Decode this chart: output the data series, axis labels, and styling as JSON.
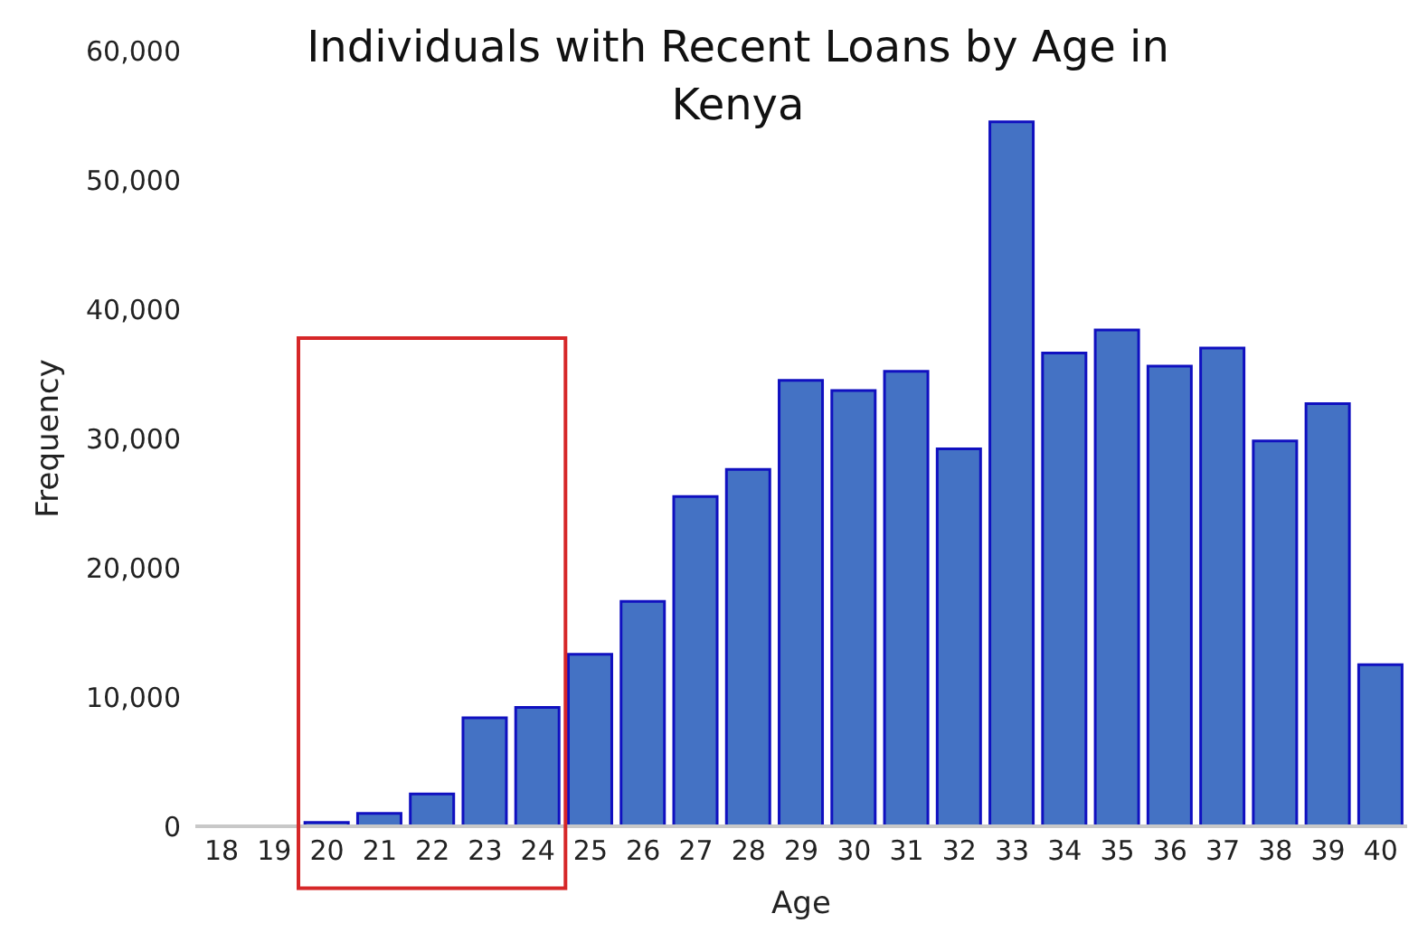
{
  "chart_data": {
    "type": "bar",
    "title": "Individuals with Recent Loans by Age in Kenya",
    "xlabel": "Age",
    "ylabel": "Frequency",
    "categories": [
      "18",
      "19",
      "20",
      "21",
      "22",
      "23",
      "24",
      "25",
      "26",
      "27",
      "28",
      "29",
      "30",
      "31",
      "32",
      "33",
      "34",
      "35",
      "36",
      "37",
      "38",
      "39",
      "40"
    ],
    "values": [
      0,
      0,
      300,
      1000,
      2500,
      8400,
      9200,
      13300,
      17400,
      25500,
      27600,
      34500,
      33700,
      35200,
      29200,
      54500,
      36600,
      38400,
      35600,
      37000,
      29800,
      32700,
      12500
    ],
    "color": "#4472c4",
    "ylim": [
      0,
      60000
    ],
    "yticks": [
      0,
      {
        "value": 10000,
        "label": "10,000"
      },
      {
        "value": 20000,
        "label": "20,000"
      },
      {
        "value": 30000,
        "label": "30,000"
      },
      {
        "value": 40000,
        "label": "40,000"
      },
      {
        "value": 50000,
        "label": "50,000"
      },
      {
        "value": 60000,
        "label": "60,000"
      }
    ],
    "grid": false
  }
}
